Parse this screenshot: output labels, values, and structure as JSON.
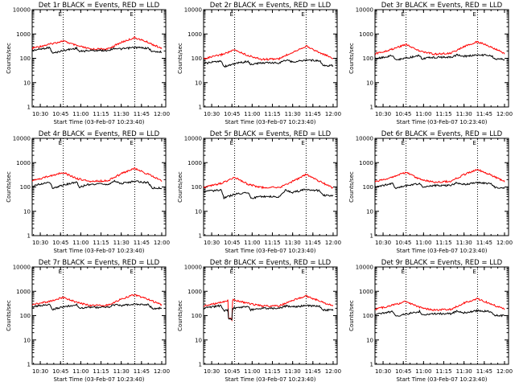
{
  "chart_data": [
    {
      "type": "line",
      "title": "Det 1r BLACK = Events, RED = LLD",
      "xlabel": "Start Time (03-Feb-07 10:23:40)",
      "ylabel": "Counts/sec",
      "x_ticks": [
        "10:30",
        "10:45",
        "11:00",
        "11:15",
        "11:30",
        "11:45",
        "12:00"
      ],
      "y_ticks": [
        "1",
        "10",
        "100",
        "1000",
        "10000"
      ],
      "xlim": [
        "10:24",
        "12:03"
      ],
      "ylim": [
        1,
        10000
      ],
      "y_scale": "log",
      "markers": [
        "10:47",
        "11:40"
      ],
      "marker_labels": [
        "E",
        "E"
      ],
      "series": [
        {
          "color": "#ff0000",
          "x": [
            "10:24",
            "10:37",
            "10:47",
            "10:57",
            "11:07",
            "11:20",
            "11:30",
            "11:40",
            "11:50",
            "12:00"
          ],
          "y": [
            260,
            380,
            520,
            330,
            240,
            240,
            450,
            710,
            450,
            250
          ]
        },
        {
          "color": "#000000",
          "x": [
            "10:24",
            "10:37",
            "10:39",
            "10:47",
            "10:57",
            "10:59",
            "11:07",
            "11:20",
            "11:25",
            "11:30",
            "11:40",
            "11:50",
            "11:53",
            "12:00"
          ],
          "y": [
            210,
            280,
            160,
            210,
            260,
            190,
            210,
            210,
            260,
            240,
            280,
            260,
            190,
            180
          ]
        }
      ]
    },
    {
      "type": "line",
      "title": "Det 2r BLACK = Events, RED = LLD",
      "xlabel": "Start Time (03-Feb-07 10:23:40)",
      "ylabel": "Counts/sec",
      "x_ticks": [
        "10:30",
        "10:45",
        "11:00",
        "11:15",
        "11:30",
        "11:45",
        "12:00"
      ],
      "y_ticks": [
        "1",
        "10",
        "100",
        "1000",
        "10000"
      ],
      "xlim": [
        "10:24",
        "12:03"
      ],
      "ylim": [
        1,
        10000
      ],
      "y_scale": "log",
      "markers": [
        "10:47",
        "11:40"
      ],
      "marker_labels": [
        "E",
        "E"
      ],
      "series": [
        {
          "color": "#ff0000",
          "x": [
            "10:24",
            "10:37",
            "10:47",
            "10:57",
            "11:07",
            "11:20",
            "11:30",
            "11:40",
            "11:50",
            "12:00"
          ],
          "y": [
            95,
            140,
            220,
            130,
            90,
            95,
            180,
            320,
            170,
            100
          ]
        },
        {
          "color": "#000000",
          "x": [
            "10:24",
            "10:37",
            "10:39",
            "10:47",
            "10:57",
            "10:59",
            "11:07",
            "11:20",
            "11:25",
            "11:30",
            "11:40",
            "11:50",
            "11:53",
            "12:00"
          ],
          "y": [
            60,
            80,
            45,
            60,
            75,
            55,
            65,
            65,
            85,
            70,
            85,
            80,
            50,
            50
          ]
        }
      ]
    },
    {
      "type": "line",
      "title": "Det 3r BLACK = Events, RED = LLD",
      "xlabel": "Start Time (03-Feb-07 10:23:40)",
      "ylabel": "Counts/sec",
      "x_ticks": [
        "10:30",
        "10:45",
        "11:00",
        "11:15",
        "11:30",
        "11:45",
        "12:00"
      ],
      "y_ticks": [
        "1",
        "10",
        "100",
        "1000",
        "10000"
      ],
      "xlim": [
        "10:24",
        "12:03"
      ],
      "ylim": [
        1,
        10000
      ],
      "y_scale": "log",
      "markers": [
        "10:47",
        "11:40"
      ],
      "marker_labels": [
        "E",
        "E"
      ],
      "series": [
        {
          "color": "#ff0000",
          "x": [
            "10:24",
            "10:37",
            "10:47",
            "10:57",
            "11:07",
            "11:20",
            "11:30",
            "11:40",
            "11:50",
            "12:00"
          ],
          "y": [
            150,
            240,
            380,
            200,
            150,
            160,
            300,
            480,
            290,
            160
          ]
        },
        {
          "color": "#000000",
          "x": [
            "10:24",
            "10:37",
            "10:39",
            "10:47",
            "10:57",
            "10:59",
            "11:07",
            "11:20",
            "11:25",
            "11:30",
            "11:40",
            "11:50",
            "11:53",
            "12:00"
          ],
          "y": [
            95,
            130,
            85,
            100,
            130,
            95,
            110,
            110,
            140,
            120,
            140,
            130,
            95,
            90
          ]
        }
      ]
    },
    {
      "type": "line",
      "title": "Det 4r BLACK = Events, RED = LLD",
      "xlabel": "Start Time (03-Feb-07 10:23:40)",
      "ylabel": "Counts/sec",
      "x_ticks": [
        "10:30",
        "10:45",
        "11:00",
        "11:15",
        "11:30",
        "11:45",
        "12:00"
      ],
      "y_ticks": [
        "1",
        "10",
        "100",
        "1000",
        "10000"
      ],
      "xlim": [
        "10:24",
        "12:03"
      ],
      "ylim": [
        1,
        10000
      ],
      "y_scale": "log",
      "markers": [
        "10:47",
        "11:40"
      ],
      "marker_labels": [
        "E",
        "E"
      ],
      "series": [
        {
          "color": "#ff0000",
          "x": [
            "10:24",
            "10:37",
            "10:47",
            "10:57",
            "11:07",
            "11:20",
            "11:30",
            "11:40",
            "11:50",
            "12:00"
          ],
          "y": [
            180,
            280,
            400,
            220,
            170,
            180,
            350,
            580,
            330,
            180
          ]
        },
        {
          "color": "#000000",
          "x": [
            "10:24",
            "10:37",
            "10:39",
            "10:47",
            "10:57",
            "10:59",
            "11:07",
            "11:20",
            "11:25",
            "11:30",
            "11:40",
            "11:50",
            "11:53",
            "12:00"
          ],
          "y": [
            110,
            160,
            90,
            120,
            160,
            100,
            130,
            130,
            170,
            140,
            170,
            150,
            90,
            90
          ]
        }
      ]
    },
    {
      "type": "line",
      "title": "Det 5r BLACK = Events, RED = LLD",
      "xlabel": "Start Time (03-Feb-07 10:23:40)",
      "ylabel": "Counts/sec",
      "x_ticks": [
        "10:30",
        "10:45",
        "11:00",
        "11:15",
        "11:30",
        "11:45",
        "12:00"
      ],
      "y_ticks": [
        "1",
        "10",
        "100",
        "1000",
        "10000"
      ],
      "xlim": [
        "10:24",
        "12:03"
      ],
      "ylim": [
        1,
        10000
      ],
      "y_scale": "log",
      "markers": [
        "10:47",
        "11:40"
      ],
      "marker_labels": [
        "E",
        "E"
      ],
      "series": [
        {
          "color": "#ff0000",
          "x": [
            "10:24",
            "10:37",
            "10:47",
            "10:57",
            "11:07",
            "11:20",
            "11:30",
            "11:40",
            "11:50",
            "12:00"
          ],
          "y": [
            95,
            140,
            250,
            130,
            95,
            95,
            170,
            330,
            170,
            90
          ]
        },
        {
          "color": "#000000",
          "x": [
            "10:24",
            "10:37",
            "10:39",
            "10:47",
            "10:57",
            "10:59",
            "11:07",
            "11:20",
            "11:25",
            "11:30",
            "11:40",
            "11:50",
            "11:53",
            "12:00"
          ],
          "y": [
            65,
            75,
            35,
            50,
            60,
            35,
            40,
            40,
            75,
            60,
            80,
            70,
            45,
            45
          ]
        }
      ]
    },
    {
      "type": "line",
      "title": "Det 6r BLACK = Events, RED = LLD",
      "xlabel": "Start Time (03-Feb-07 10:23:40)",
      "ylabel": "Counts/sec",
      "x_ticks": [
        "10:30",
        "10:45",
        "11:00",
        "11:15",
        "11:30",
        "11:45",
        "12:00"
      ],
      "y_ticks": [
        "1",
        "10",
        "100",
        "1000",
        "10000"
      ],
      "xlim": [
        "10:24",
        "12:03"
      ],
      "ylim": [
        1,
        10000
      ],
      "y_scale": "log",
      "markers": [
        "10:47",
        "11:40"
      ],
      "marker_labels": [
        "E",
        "E"
      ],
      "series": [
        {
          "color": "#ff0000",
          "x": [
            "10:24",
            "10:37",
            "10:47",
            "10:57",
            "11:07",
            "11:20",
            "11:30",
            "11:40",
            "11:50",
            "12:00"
          ],
          "y": [
            160,
            260,
            400,
            210,
            160,
            170,
            320,
            530,
            310,
            170
          ]
        },
        {
          "color": "#000000",
          "x": [
            "10:24",
            "10:37",
            "10:39",
            "10:47",
            "10:57",
            "10:59",
            "11:07",
            "11:20",
            "11:25",
            "11:30",
            "11:40",
            "11:50",
            "11:53",
            "12:00"
          ],
          "y": [
            100,
            140,
            90,
            110,
            140,
            100,
            115,
            115,
            150,
            125,
            150,
            135,
            95,
            90
          ]
        }
      ]
    },
    {
      "type": "line",
      "title": "Det 7r BLACK = Events, RED = LLD",
      "xlabel": "Start Time (03-Feb-07 10:23:40)",
      "ylabel": "Counts/sec",
      "x_ticks": [
        "10:30",
        "10:45",
        "11:00",
        "11:15",
        "11:30",
        "11:45",
        "12:00"
      ],
      "y_ticks": [
        "1",
        "10",
        "100",
        "1000",
        "10000"
      ],
      "xlim": [
        "10:24",
        "12:03"
      ],
      "ylim": [
        1,
        10000
      ],
      "y_scale": "log",
      "markers": [
        "10:47",
        "11:40"
      ],
      "marker_labels": [
        "E",
        "E"
      ],
      "series": [
        {
          "color": "#ff0000",
          "x": [
            "10:24",
            "10:37",
            "10:47",
            "10:57",
            "11:07",
            "11:20",
            "11:30",
            "11:40",
            "11:50",
            "12:00"
          ],
          "y": [
            280,
            390,
            560,
            350,
            260,
            270,
            480,
            730,
            460,
            280
          ]
        },
        {
          "color": "#000000",
          "x": [
            "10:24",
            "10:37",
            "10:39",
            "10:47",
            "10:57",
            "10:59",
            "11:07",
            "11:20",
            "11:25",
            "11:30",
            "11:40",
            "11:50",
            "11:53",
            "12:00"
          ],
          "y": [
            230,
            300,
            180,
            230,
            280,
            200,
            220,
            220,
            280,
            260,
            300,
            280,
            200,
            200
          ]
        }
      ]
    },
    {
      "type": "line",
      "title": "Det 8r BLACK = Events, RED = LLD",
      "xlabel": "Start Time (03-Feb-07 10:23:40)",
      "ylabel": "Counts/sec",
      "x_ticks": [
        "10:30",
        "10:45",
        "11:00",
        "11:15",
        "11:30",
        "11:45",
        "12:00"
      ],
      "y_ticks": [
        "1",
        "10",
        "100",
        "1000",
        "10000"
      ],
      "xlim": [
        "10:24",
        "12:03"
      ],
      "ylim": [
        1,
        10000
      ],
      "y_scale": "log",
      "markers": [
        "10:47",
        "11:40"
      ],
      "marker_labels": [
        "E",
        "E"
      ],
      "series": [
        {
          "color": "#ff0000",
          "x": [
            "10:24",
            "10:37",
            "10:42",
            "10:42.5",
            "10:45",
            "10:45.5",
            "10:57",
            "11:07",
            "11:20",
            "11:30",
            "11:40",
            "11:50",
            "12:00"
          ],
          "y": [
            250,
            350,
            420,
            80,
            70,
            450,
            320,
            250,
            250,
            420,
            650,
            400,
            250
          ]
        },
        {
          "color": "#000000",
          "x": [
            "10:24",
            "10:37",
            "10:39",
            "10:42",
            "10:42.5",
            "10:45",
            "10:45.5",
            "10:57",
            "10:59",
            "11:07",
            "11:20",
            "11:25",
            "11:30",
            "11:40",
            "11:50",
            "11:53",
            "12:00"
          ],
          "y": [
            200,
            260,
            160,
            170,
            80,
            70,
            200,
            240,
            170,
            200,
            200,
            250,
            230,
            260,
            240,
            170,
            170
          ]
        }
      ]
    },
    {
      "type": "line",
      "title": "Det 9r BLACK = Events, RED = LLD",
      "xlabel": "Start Time (03-Feb-07 10:23:40)",
      "ylabel": "Counts/sec",
      "x_ticks": [
        "10:30",
        "10:45",
        "11:00",
        "11:15",
        "11:30",
        "11:45",
        "12:00"
      ],
      "y_ticks": [
        "1",
        "10",
        "100",
        "1000",
        "10000"
      ],
      "xlim": [
        "10:24",
        "12:03"
      ],
      "ylim": [
        1,
        10000
      ],
      "y_scale": "log",
      "markers": [
        "10:47",
        "11:40"
      ],
      "marker_labels": [
        "E",
        "E"
      ],
      "series": [
        {
          "color": "#ff0000",
          "x": [
            "10:24",
            "10:37",
            "10:47",
            "10:57",
            "11:07",
            "11:20",
            "11:30",
            "11:40",
            "11:50",
            "12:00"
          ],
          "y": [
            180,
            270,
            380,
            220,
            170,
            180,
            330,
            500,
            300,
            180
          ]
        },
        {
          "color": "#000000",
          "x": [
            "10:24",
            "10:37",
            "10:39",
            "10:47",
            "10:57",
            "10:59",
            "11:07",
            "11:20",
            "11:25",
            "11:30",
            "11:40",
            "11:50",
            "11:53",
            "12:00"
          ],
          "y": [
            110,
            150,
            95,
            115,
            150,
            105,
            120,
            120,
            155,
            130,
            160,
            145,
            100,
            100
          ]
        }
      ]
    }
  ]
}
